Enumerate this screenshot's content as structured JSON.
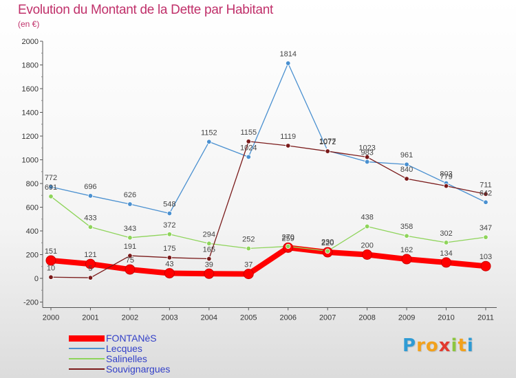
{
  "title": "Evolution du Montant de la Dette par Habitant",
  "subtitle": "(en €)",
  "logo": {
    "letters": [
      "P",
      "r",
      "o",
      "x",
      "i",
      "t",
      "i"
    ],
    "colors": [
      "#2f9bd4",
      "#f2a11c",
      "#f2a11c",
      "#e23a2f",
      "#8cc63f",
      "#f2a11c",
      "#2f9bd4"
    ]
  },
  "chart_data": {
    "type": "line",
    "x": [
      "2000",
      "2001",
      "2002",
      "2003",
      "2004",
      "2005",
      "2006",
      "2007",
      "2008",
      "2009",
      "2010",
      "2011"
    ],
    "ylim": [
      -200,
      2000
    ],
    "yticks": [
      "-200",
      "0",
      "200",
      "400",
      "600",
      "800",
      "1000",
      "1200",
      "1400",
      "1600",
      "1800",
      "2000"
    ],
    "grid": false,
    "legend_position": "bottom-left",
    "series": [
      {
        "name": "FONTANèS",
        "color": "#ff0000",
        "values": [
          151,
          121,
          75,
          43,
          39,
          37,
          259,
          220,
          200,
          162,
          134,
          103
        ],
        "labels": [
          "151",
          "121",
          "75",
          "43",
          "39",
          "37",
          "259",
          "220",
          "200",
          "162",
          "134",
          "103"
        ]
      },
      {
        "name": "Lecques",
        "color": "#4a90d0",
        "values": [
          772,
          696,
          626,
          548,
          1152,
          1024,
          1814,
          1077,
          983,
          961,
          803,
          642
        ],
        "labels": [
          "772",
          "696",
          "626",
          "548",
          "1152",
          "1024",
          "1814",
          "1077",
          "983",
          "961",
          "803",
          "642"
        ]
      },
      {
        "name": "Salinelles",
        "color": "#8ed45a",
        "values": [
          691,
          433,
          343,
          372,
          294,
          252,
          270,
          230,
          438,
          358,
          302,
          347
        ],
        "labels": [
          "691",
          "433",
          "343",
          "372",
          "294",
          "252",
          "270",
          "230",
          "438",
          "358",
          "302",
          "347"
        ]
      },
      {
        "name": "Souvignargues",
        "color": "#7a1a1a",
        "values": [
          10,
          5,
          191,
          175,
          165,
          1155,
          1119,
          1072,
          1023,
          840,
          779,
          711
        ],
        "labels": [
          "10",
          "5",
          "191",
          "175",
          "165",
          "1155",
          "1119",
          "1072",
          "1023",
          "840",
          "779",
          "711"
        ]
      }
    ]
  }
}
